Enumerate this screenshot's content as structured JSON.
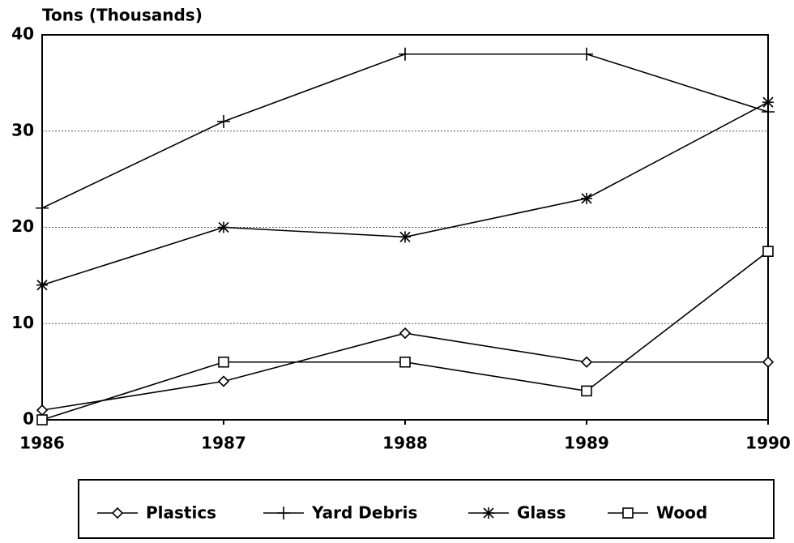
{
  "chart_data": {
    "type": "line",
    "y_label": "Tons (Thousands)",
    "x": [
      1986,
      1987,
      1988,
      1989,
      1990
    ],
    "xlim": [
      1986,
      1990
    ],
    "xticks": [
      1986,
      1987,
      1988,
      1989,
      1990
    ],
    "ylim": [
      0,
      40
    ],
    "yticks": [
      0,
      10,
      20,
      30,
      40
    ],
    "grid": true,
    "series": [
      {
        "name": "Plastics",
        "color": "#000000",
        "marker": "diamond",
        "values": [
          1,
          4,
          9,
          6,
          6
        ]
      },
      {
        "name": "Yard Debris",
        "color": "#000000",
        "marker": "plus",
        "values": [
          22,
          31,
          38,
          38,
          32
        ]
      },
      {
        "name": "Glass",
        "color": "#000000",
        "marker": "asterisk",
        "values": [
          14,
          20,
          19,
          23,
          33
        ]
      },
      {
        "name": "Wood",
        "color": "#000000",
        "marker": "square",
        "values": [
          0,
          6,
          6,
          3,
          17.5
        ]
      }
    ]
  }
}
